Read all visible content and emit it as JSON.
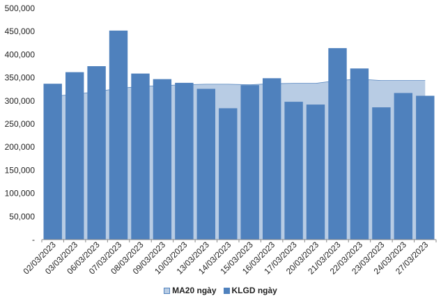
{
  "chart_data": {
    "type": "bar",
    "categories": [
      "02/03/2023",
      "03/03/2023",
      "06/03/2023",
      "07/03/2023",
      "08/03/2023",
      "09/03/2023",
      "10/03/2023",
      "13/03/2023",
      "14/03/2023",
      "15/03/2023",
      "16/03/2023",
      "17/03/2023",
      "20/03/2023",
      "21/03/2023",
      "22/03/2023",
      "23/03/2023",
      "24/03/2023",
      "27/03/2023"
    ],
    "ylim": [
      0,
      500000
    ],
    "yticks": [
      "-",
      "50,000",
      "100,000",
      "150,000",
      "200,000",
      "250,000",
      "300,000",
      "350,000",
      "400,000",
      "450,000",
      "500,000"
    ],
    "series": [
      {
        "name": "MA20 ngày",
        "type": "area",
        "color": "#b8cce4",
        "stroke": "#4f81bd",
        "values": [
          310000,
          314000,
          320000,
          327000,
          331000,
          333000,
          335000,
          336000,
          336000,
          335000,
          337000,
          338000,
          338000,
          344000,
          347000,
          344000,
          344000,
          344000
        ]
      },
      {
        "name": "KLGD ngày",
        "type": "bar",
        "color": "#4f81bd",
        "values": [
          337000,
          362000,
          375000,
          452000,
          359000,
          347000,
          339000,
          326000,
          284000,
          334000,
          349000,
          298000,
          292000,
          414000,
          370000,
          286000,
          317000,
          311000
        ]
      }
    ],
    "grid": false,
    "legend_position": "bottom"
  }
}
